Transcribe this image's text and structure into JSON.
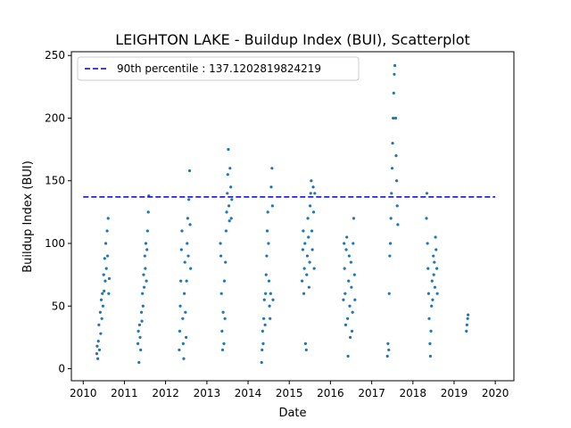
{
  "chart_data": {
    "type": "scatter",
    "title": "LEIGHTON LAKE - Buildup Index (BUI), Scatterplot",
    "xlabel": "Date",
    "ylabel": "Buildup Index (BUI)",
    "xlim": [
      "2009-09-18",
      "2020-06-14"
    ],
    "ylim": [
      -9.6,
      253
    ],
    "x_ticks": [
      "2010",
      "2011",
      "2012",
      "2013",
      "2014",
      "2015",
      "2016",
      "2017",
      "2018",
      "2019",
      "2020"
    ],
    "y_ticks": [
      0,
      50,
      100,
      150,
      200,
      250
    ],
    "grid": false,
    "legend_position": "top-left",
    "colors": {
      "points": "#1f77b4",
      "percentile_line": "#0000cc"
    },
    "reference_line": {
      "label": "90th percentile : 137.1202819824219",
      "value": 137.1202819824219,
      "x_range": [
        "2010-01-01",
        "2020-01-01"
      ]
    },
    "seasons": [
      {
        "year": 2010,
        "points": [
          [
            "2010-05-01",
            12
          ],
          [
            "2010-05-05",
            18
          ],
          [
            "2010-05-10",
            8
          ],
          [
            "2010-05-15",
            22
          ],
          [
            "2010-05-20",
            35
          ],
          [
            "2010-05-25",
            15
          ],
          [
            "2010-06-01",
            45
          ],
          [
            "2010-06-05",
            28
          ],
          [
            "2010-06-10",
            55
          ],
          [
            "2010-06-15",
            40
          ],
          [
            "2010-06-20",
            60
          ],
          [
            "2010-06-25",
            50
          ],
          [
            "2010-07-01",
            75
          ],
          [
            "2010-07-05",
            62
          ],
          [
            "2010-07-10",
            88
          ],
          [
            "2010-07-15",
            70
          ],
          [
            "2010-07-20",
            100
          ],
          [
            "2010-07-25",
            80
          ],
          [
            "2010-08-01",
            110
          ],
          [
            "2010-08-05",
            90
          ],
          [
            "2010-08-10",
            120
          ],
          [
            "2010-08-15",
            60
          ],
          [
            "2010-08-20",
            72
          ]
        ]
      },
      {
        "year": 2011,
        "points": [
          [
            "2011-05-01",
            20
          ],
          [
            "2011-05-05",
            30
          ],
          [
            "2011-05-10",
            5
          ],
          [
            "2011-05-15",
            35
          ],
          [
            "2011-05-20",
            25
          ],
          [
            "2011-05-25",
            15
          ],
          [
            "2011-06-01",
            45
          ],
          [
            "2011-06-05",
            38
          ],
          [
            "2011-06-10",
            60
          ],
          [
            "2011-06-15",
            50
          ],
          [
            "2011-06-20",
            75
          ],
          [
            "2011-06-25",
            65
          ],
          [
            "2011-07-01",
            90
          ],
          [
            "2011-07-05",
            80
          ],
          [
            "2011-07-10",
            100
          ],
          [
            "2011-07-15",
            70
          ],
          [
            "2011-07-20",
            95
          ],
          [
            "2011-07-25",
            110
          ],
          [
            "2011-08-01",
            125
          ],
          [
            "2011-08-05",
            138
          ]
        ]
      },
      {
        "year": 2012,
        "points": [
          [
            "2012-05-01",
            15
          ],
          [
            "2012-05-05",
            30
          ],
          [
            "2012-05-10",
            50
          ],
          [
            "2012-05-15",
            70
          ],
          [
            "2012-05-20",
            95
          ],
          [
            "2012-05-25",
            110
          ],
          [
            "2012-06-01",
            40
          ],
          [
            "2012-06-05",
            20
          ],
          [
            "2012-06-10",
            8
          ],
          [
            "2012-06-15",
            60
          ],
          [
            "2012-06-20",
            85
          ],
          [
            "2012-06-25",
            45
          ],
          [
            "2012-07-01",
            25
          ],
          [
            "2012-07-05",
            70
          ],
          [
            "2012-07-10",
            100
          ],
          [
            "2012-07-15",
            120
          ],
          [
            "2012-07-20",
            90
          ],
          [
            "2012-07-25",
            135
          ],
          [
            "2012-08-01",
            158
          ],
          [
            "2012-08-05",
            115
          ],
          [
            "2012-08-10",
            80
          ]
        ]
      },
      {
        "year": 2013,
        "points": [
          [
            "2013-05-01",
            100
          ],
          [
            "2013-05-05",
            90
          ],
          [
            "2013-05-10",
            60
          ],
          [
            "2013-05-15",
            30
          ],
          [
            "2013-05-20",
            15
          ],
          [
            "2013-05-25",
            45
          ],
          [
            "2013-06-01",
            20
          ],
          [
            "2013-06-05",
            70
          ],
          [
            "2013-06-10",
            40
          ],
          [
            "2013-06-15",
            85
          ],
          [
            "2013-06-20",
            110
          ],
          [
            "2013-06-25",
            125
          ],
          [
            "2013-07-01",
            140
          ],
          [
            "2013-07-05",
            155
          ],
          [
            "2013-07-10",
            175
          ],
          [
            "2013-07-15",
            130
          ],
          [
            "2013-07-20",
            118
          ],
          [
            "2013-07-25",
            160
          ],
          [
            "2013-08-01",
            145
          ],
          [
            "2013-08-05",
            120
          ],
          [
            "2013-08-10",
            135
          ]
        ]
      },
      {
        "year": 2014,
        "points": [
          [
            "2014-05-01",
            5
          ],
          [
            "2014-05-05",
            15
          ],
          [
            "2014-05-10",
            30
          ],
          [
            "2014-05-15",
            20
          ],
          [
            "2014-05-20",
            40
          ],
          [
            "2014-05-25",
            55
          ],
          [
            "2014-06-01",
            35
          ],
          [
            "2014-06-05",
            60
          ],
          [
            "2014-06-10",
            75
          ],
          [
            "2014-06-15",
            90
          ],
          [
            "2014-06-20",
            110
          ],
          [
            "2014-06-25",
            125
          ],
          [
            "2014-07-01",
            100
          ],
          [
            "2014-07-05",
            70
          ],
          [
            "2014-07-10",
            50
          ],
          [
            "2014-07-15",
            40
          ],
          [
            "2014-07-20",
            60
          ],
          [
            "2014-07-25",
            145
          ],
          [
            "2014-08-01",
            160
          ],
          [
            "2014-08-05",
            130
          ],
          [
            "2014-08-10",
            55
          ]
        ]
      },
      {
        "year": 2015,
        "points": [
          [
            "2015-04-25",
            70
          ],
          [
            "2015-05-01",
            95
          ],
          [
            "2015-05-05",
            110
          ],
          [
            "2015-05-10",
            60
          ],
          [
            "2015-05-15",
            80
          ],
          [
            "2015-05-20",
            100
          ],
          [
            "2015-05-25",
            20
          ],
          [
            "2015-06-01",
            15
          ],
          [
            "2015-06-05",
            75
          ],
          [
            "2015-06-10",
            90
          ],
          [
            "2015-06-15",
            120
          ],
          [
            "2015-06-20",
            105
          ],
          [
            "2015-06-25",
            65
          ],
          [
            "2015-07-01",
            85
          ],
          [
            "2015-07-05",
            130
          ],
          [
            "2015-07-10",
            140
          ],
          [
            "2015-07-15",
            150
          ],
          [
            "2015-07-20",
            110
          ],
          [
            "2015-07-25",
            95
          ],
          [
            "2015-08-01",
            145
          ],
          [
            "2015-08-05",
            125
          ],
          [
            "2015-08-10",
            80
          ],
          [
            "2015-08-15",
            140
          ]
        ]
      },
      {
        "year": 2016,
        "points": [
          [
            "2016-04-25",
            55
          ],
          [
            "2016-05-01",
            100
          ],
          [
            "2016-05-05",
            80
          ],
          [
            "2016-05-10",
            60
          ],
          [
            "2016-05-15",
            35
          ],
          [
            "2016-05-20",
            95
          ],
          [
            "2016-05-25",
            105
          ],
          [
            "2016-06-01",
            40
          ],
          [
            "2016-06-05",
            10
          ],
          [
            "2016-06-10",
            70
          ],
          [
            "2016-06-15",
            90
          ],
          [
            "2016-06-20",
            50
          ],
          [
            "2016-06-25",
            25
          ],
          [
            "2016-07-01",
            85
          ],
          [
            "2016-07-05",
            65
          ],
          [
            "2016-07-10",
            30
          ],
          [
            "2016-07-15",
            45
          ],
          [
            "2016-07-20",
            100
          ],
          [
            "2016-07-25",
            120
          ],
          [
            "2016-08-01",
            75
          ],
          [
            "2016-08-05",
            55
          ]
        ]
      },
      {
        "year": 2017,
        "points": [
          [
            "2017-05-20",
            10
          ],
          [
            "2017-05-25",
            20
          ],
          [
            "2017-06-01",
            15
          ],
          [
            "2017-06-05",
            60
          ],
          [
            "2017-06-10",
            90
          ],
          [
            "2017-06-15",
            100
          ],
          [
            "2017-06-20",
            120
          ],
          [
            "2017-06-25",
            140
          ],
          [
            "2017-07-01",
            160
          ],
          [
            "2017-07-05",
            180
          ],
          [
            "2017-07-10",
            200
          ],
          [
            "2017-07-15",
            220
          ],
          [
            "2017-07-20",
            235
          ],
          [
            "2017-07-25",
            242
          ],
          [
            "2017-08-01",
            200
          ],
          [
            "2017-08-05",
            170
          ],
          [
            "2017-08-10",
            150
          ],
          [
            "2017-08-15",
            130
          ],
          [
            "2017-08-20",
            115
          ]
        ]
      },
      {
        "year": 2018,
        "points": [
          [
            "2018-05-01",
            120
          ],
          [
            "2018-05-05",
            140
          ],
          [
            "2018-05-10",
            100
          ],
          [
            "2018-05-15",
            80
          ],
          [
            "2018-05-20",
            60
          ],
          [
            "2018-05-25",
            40
          ],
          [
            "2018-06-01",
            20
          ],
          [
            "2018-06-05",
            10
          ],
          [
            "2018-06-10",
            30
          ],
          [
            "2018-06-15",
            50
          ],
          [
            "2018-06-20",
            70
          ],
          [
            "2018-06-25",
            55
          ],
          [
            "2018-07-01",
            90
          ],
          [
            "2018-07-05",
            75
          ],
          [
            "2018-07-10",
            85
          ],
          [
            "2018-07-15",
            65
          ],
          [
            "2018-07-20",
            105
          ],
          [
            "2018-07-25",
            95
          ],
          [
            "2018-08-01",
            80
          ],
          [
            "2018-08-05",
            60
          ]
        ]
      },
      {
        "year": 2019,
        "points": [
          [
            "2019-04-20",
            30
          ],
          [
            "2019-04-25",
            35
          ],
          [
            "2019-05-01",
            40
          ],
          [
            "2019-05-05",
            43
          ]
        ]
      }
    ]
  }
}
